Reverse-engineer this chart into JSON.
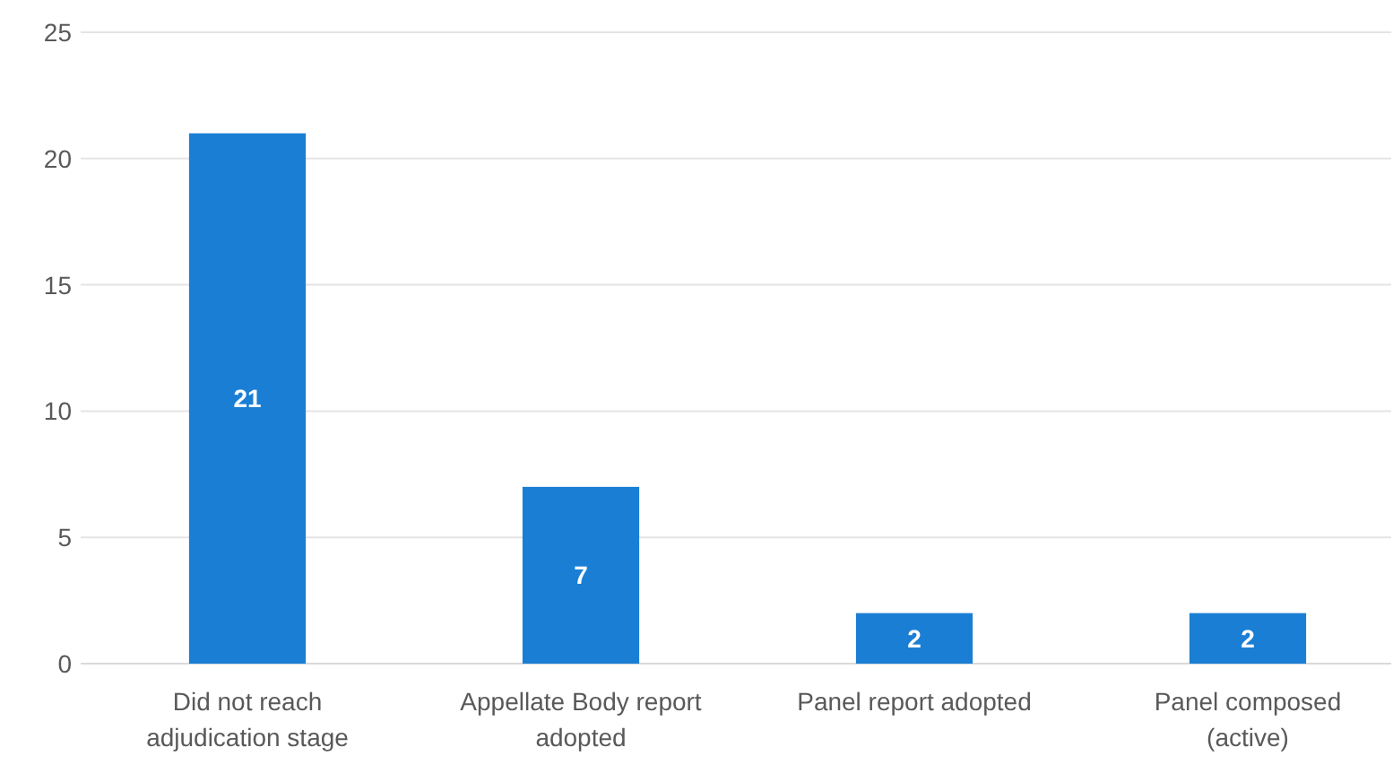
{
  "chart_data": {
    "type": "bar",
    "categories": [
      "Did not reach adjudication stage",
      "Appellate Body report adopted",
      "Panel report adopted",
      "Panel composed (active)"
    ],
    "values": [
      21,
      7,
      2,
      2
    ],
    "color": "#1a7fd4",
    "ylim": [
      0,
      25
    ],
    "yticks": [
      0,
      5,
      10,
      15,
      20,
      25
    ],
    "grid": "y",
    "data_labels": true
  }
}
